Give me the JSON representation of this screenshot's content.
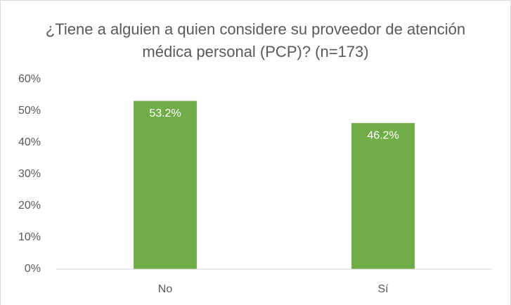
{
  "chart_data": {
    "type": "bar",
    "title": "¿Tiene a alguien a quien considere su proveedor de atención médica personal (PCP)? (n=173)",
    "categories": [
      "No",
      "Sí"
    ],
    "values": [
      53.2,
      46.2
    ],
    "value_labels": [
      "53.2%",
      "46.2%"
    ],
    "color": "#70ad47",
    "ylim": [
      0,
      60
    ],
    "yticks": [
      {
        "value": 0,
        "label": "0%"
      },
      {
        "value": 10,
        "label": "10%"
      },
      {
        "value": 20,
        "label": "20%"
      },
      {
        "value": 30,
        "label": "30%"
      },
      {
        "value": 40,
        "label": "40%"
      },
      {
        "value": 50,
        "label": "50%"
      },
      {
        "value": 60,
        "label": "60%"
      }
    ],
    "grid": false
  }
}
